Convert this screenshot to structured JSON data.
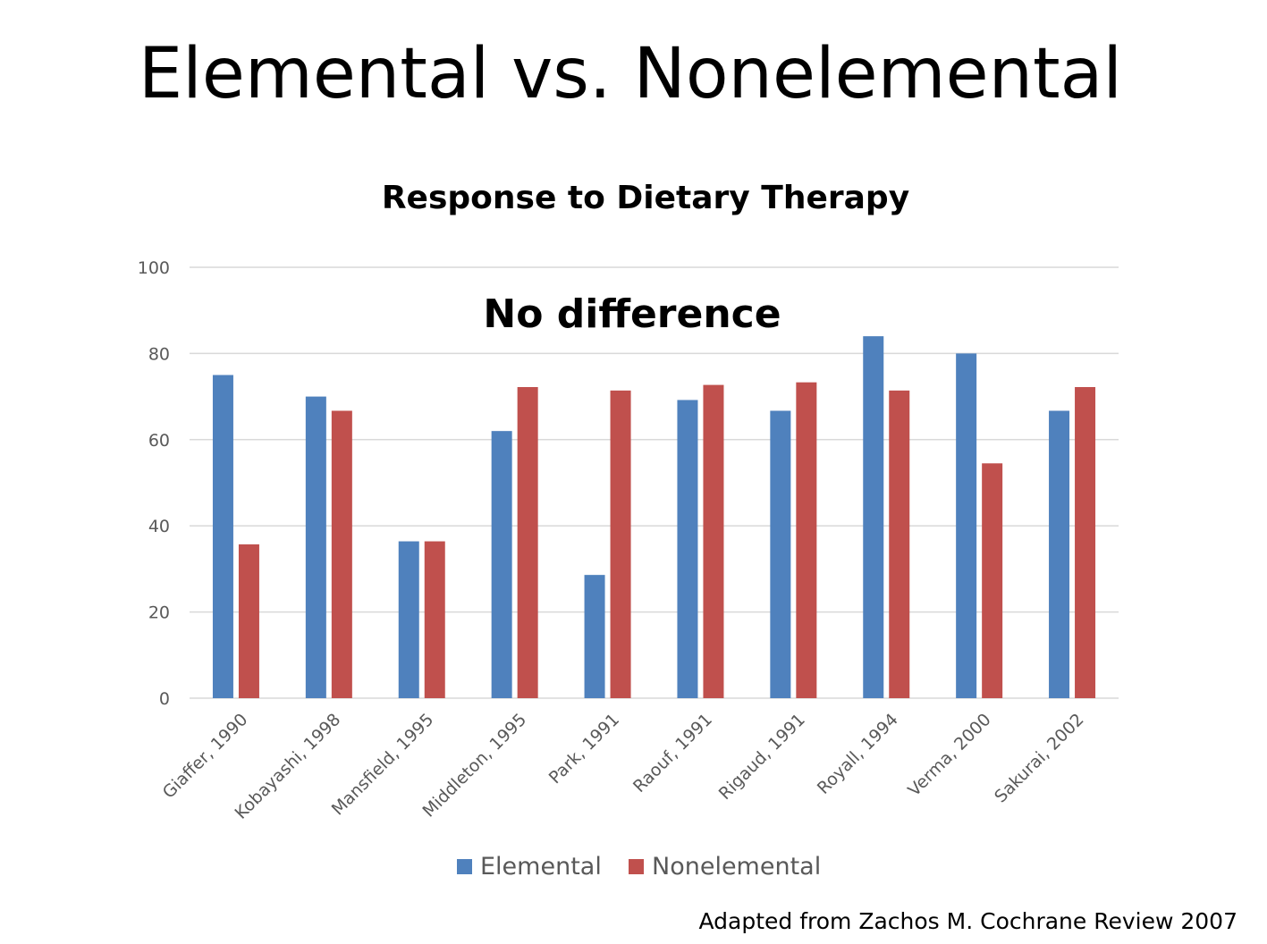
{
  "slide": {
    "title": "Elemental vs. Nonelemental",
    "source": "Adapted from Zachos M. Cochrane Review 2007"
  },
  "chart_data": {
    "type": "bar",
    "title": "Response to Dietary Therapy",
    "annotation": "No difference",
    "xlabel": "",
    "ylabel": "",
    "ylim": [
      0,
      100
    ],
    "yticks": [
      0,
      20,
      40,
      60,
      80,
      100
    ],
    "grid": true,
    "legend": "bottom",
    "categories": [
      "Giaffer, 1990",
      "Kobayashi, 1998",
      "Mansfield, 1995",
      "Middleton, 1995",
      "Park, 1991",
      "Raouf, 1991",
      "Rigaud, 1991",
      "Royall, 1994",
      "Verma, 2000",
      "Sakurai, 2002"
    ],
    "series": [
      {
        "name": "Elemental",
        "color": "#4F81BD",
        "values": [
          75,
          70,
          36.4,
          62,
          28.6,
          69.2,
          66.7,
          84,
          80,
          66.7
        ]
      },
      {
        "name": "Nonelemental",
        "color": "#C0504D",
        "values": [
          35.7,
          66.7,
          36.4,
          72.2,
          71.4,
          72.7,
          73.3,
          71.4,
          54.5,
          72.2
        ]
      }
    ]
  }
}
